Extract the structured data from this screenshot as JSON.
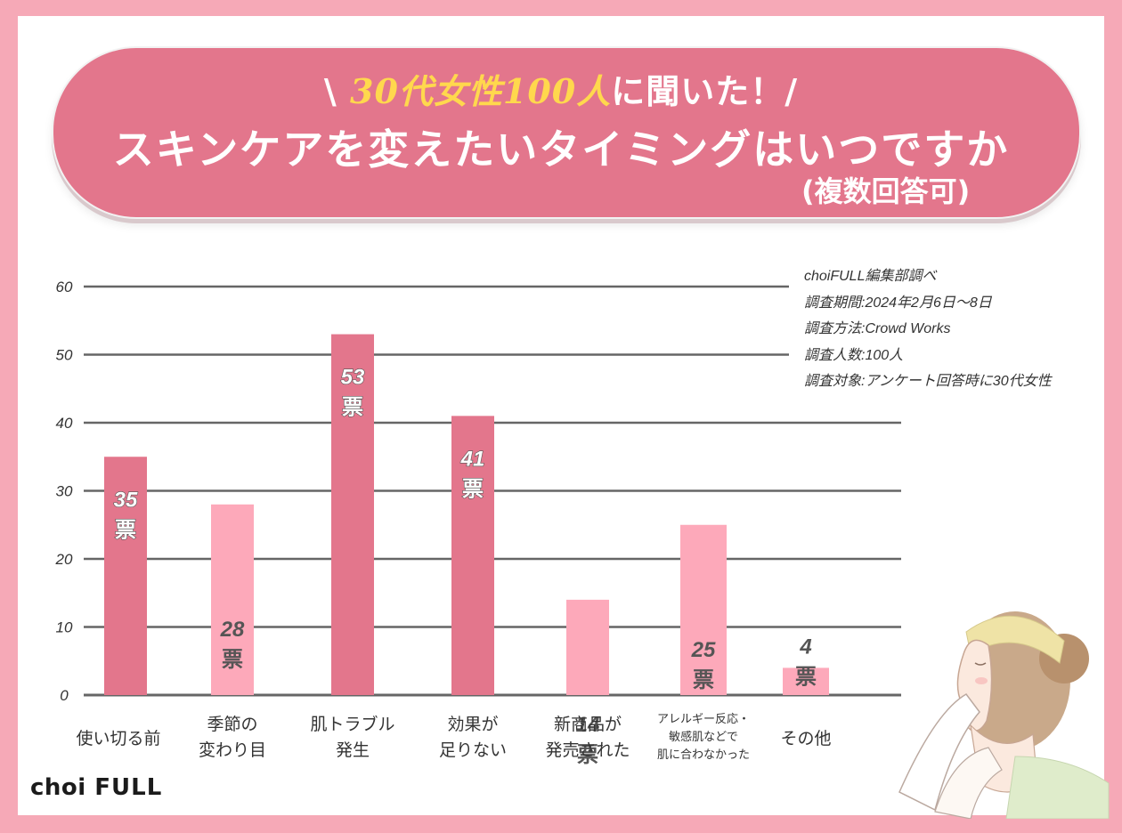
{
  "header": {
    "prefix": "\\ ",
    "highlight": "30代女性100人",
    "suffix": "に聞いた！/",
    "question": "スキンケアを変えたいタイミングはいつですか",
    "note": "(複数回答可)"
  },
  "meta": {
    "source": "choiFULL編集部調べ",
    "period": "調査期間:2024年2月6日〜8日",
    "method": "調査方法:Crowd Works",
    "count": "調査人数:100人",
    "target": "調査対象:アンケート回答時に30代女性"
  },
  "logo": {
    "choi": "choi",
    "full": "FULL"
  },
  "colors": {
    "dark": "#e3768c",
    "light": "#fda9ba",
    "grid": "#666666",
    "background": "#f6a9b7"
  },
  "chart_data": {
    "type": "bar",
    "categories": [
      [
        "使い切る前"
      ],
      [
        "季節の",
        "変わり目"
      ],
      [
        "肌トラブル",
        "発生"
      ],
      [
        "効果が",
        "足りない"
      ],
      [
        "新商品が",
        "発売された"
      ],
      [
        "アレルギー反応・",
        "敏感肌などで",
        "肌に合わなかった"
      ],
      [
        "その他"
      ]
    ],
    "values": [
      35,
      28,
      53,
      41,
      14,
      25,
      4
    ],
    "unit": "票",
    "ylim": [
      0,
      60
    ],
    "yticks": [
      0,
      10,
      20,
      30,
      40,
      50,
      60
    ],
    "grid": true,
    "highlight_indices": [
      0,
      2,
      3
    ]
  }
}
